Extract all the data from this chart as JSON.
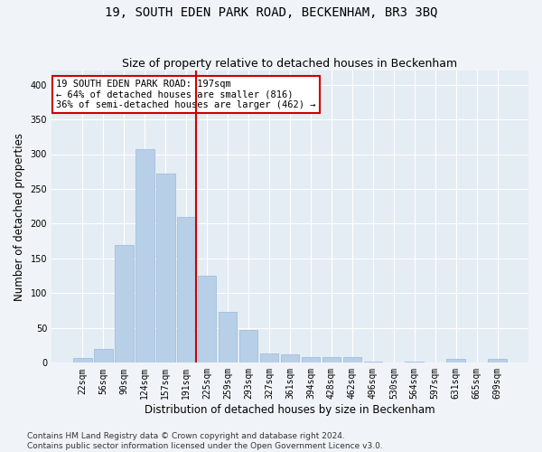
{
  "title": "19, SOUTH EDEN PARK ROAD, BECKENHAM, BR3 3BQ",
  "subtitle": "Size of property relative to detached houses in Beckenham",
  "xlabel": "Distribution of detached houses by size in Beckenham",
  "ylabel": "Number of detached properties",
  "bar_labels": [
    "22sqm",
    "56sqm",
    "90sqm",
    "124sqm",
    "157sqm",
    "191sqm",
    "225sqm",
    "259sqm",
    "293sqm",
    "327sqm",
    "361sqm",
    "394sqm",
    "428sqm",
    "462sqm",
    "496sqm",
    "530sqm",
    "564sqm",
    "597sqm",
    "631sqm",
    "665sqm",
    "699sqm"
  ],
  "bar_values": [
    7,
    20,
    170,
    307,
    272,
    210,
    125,
    73,
    47,
    14,
    12,
    8,
    8,
    8,
    2,
    0,
    2,
    0,
    5,
    0,
    5
  ],
  "bar_color": "#b8cfe8",
  "bar_edge_color": "#9ab8d8",
  "fig_background_color": "#f0f4f8",
  "ax_background_color": "#e4ecf4",
  "grid_color": "#ffffff",
  "red_line_color": "#cc0000",
  "red_line_index": 5,
  "annotation_line1": "19 SOUTH EDEN PARK ROAD: 197sqm",
  "annotation_line2": "← 64% of detached houses are smaller (816)",
  "annotation_line3": "36% of semi-detached houses are larger (462) →",
  "annotation_box_color": "#ffffff",
  "annotation_box_edge_color": "#cc0000",
  "ylim": [
    0,
    420
  ],
  "yticks": [
    0,
    50,
    100,
    150,
    200,
    250,
    300,
    350,
    400
  ],
  "title_fontsize": 10,
  "subtitle_fontsize": 9,
  "xlabel_fontsize": 8.5,
  "ylabel_fontsize": 8.5,
  "tick_fontsize": 7,
  "annotation_fontsize": 7.5,
  "footer_fontsize": 6.5,
  "footer_line1": "Contains HM Land Registry data © Crown copyright and database right 2024.",
  "footer_line2": "Contains public sector information licensed under the Open Government Licence v3.0."
}
